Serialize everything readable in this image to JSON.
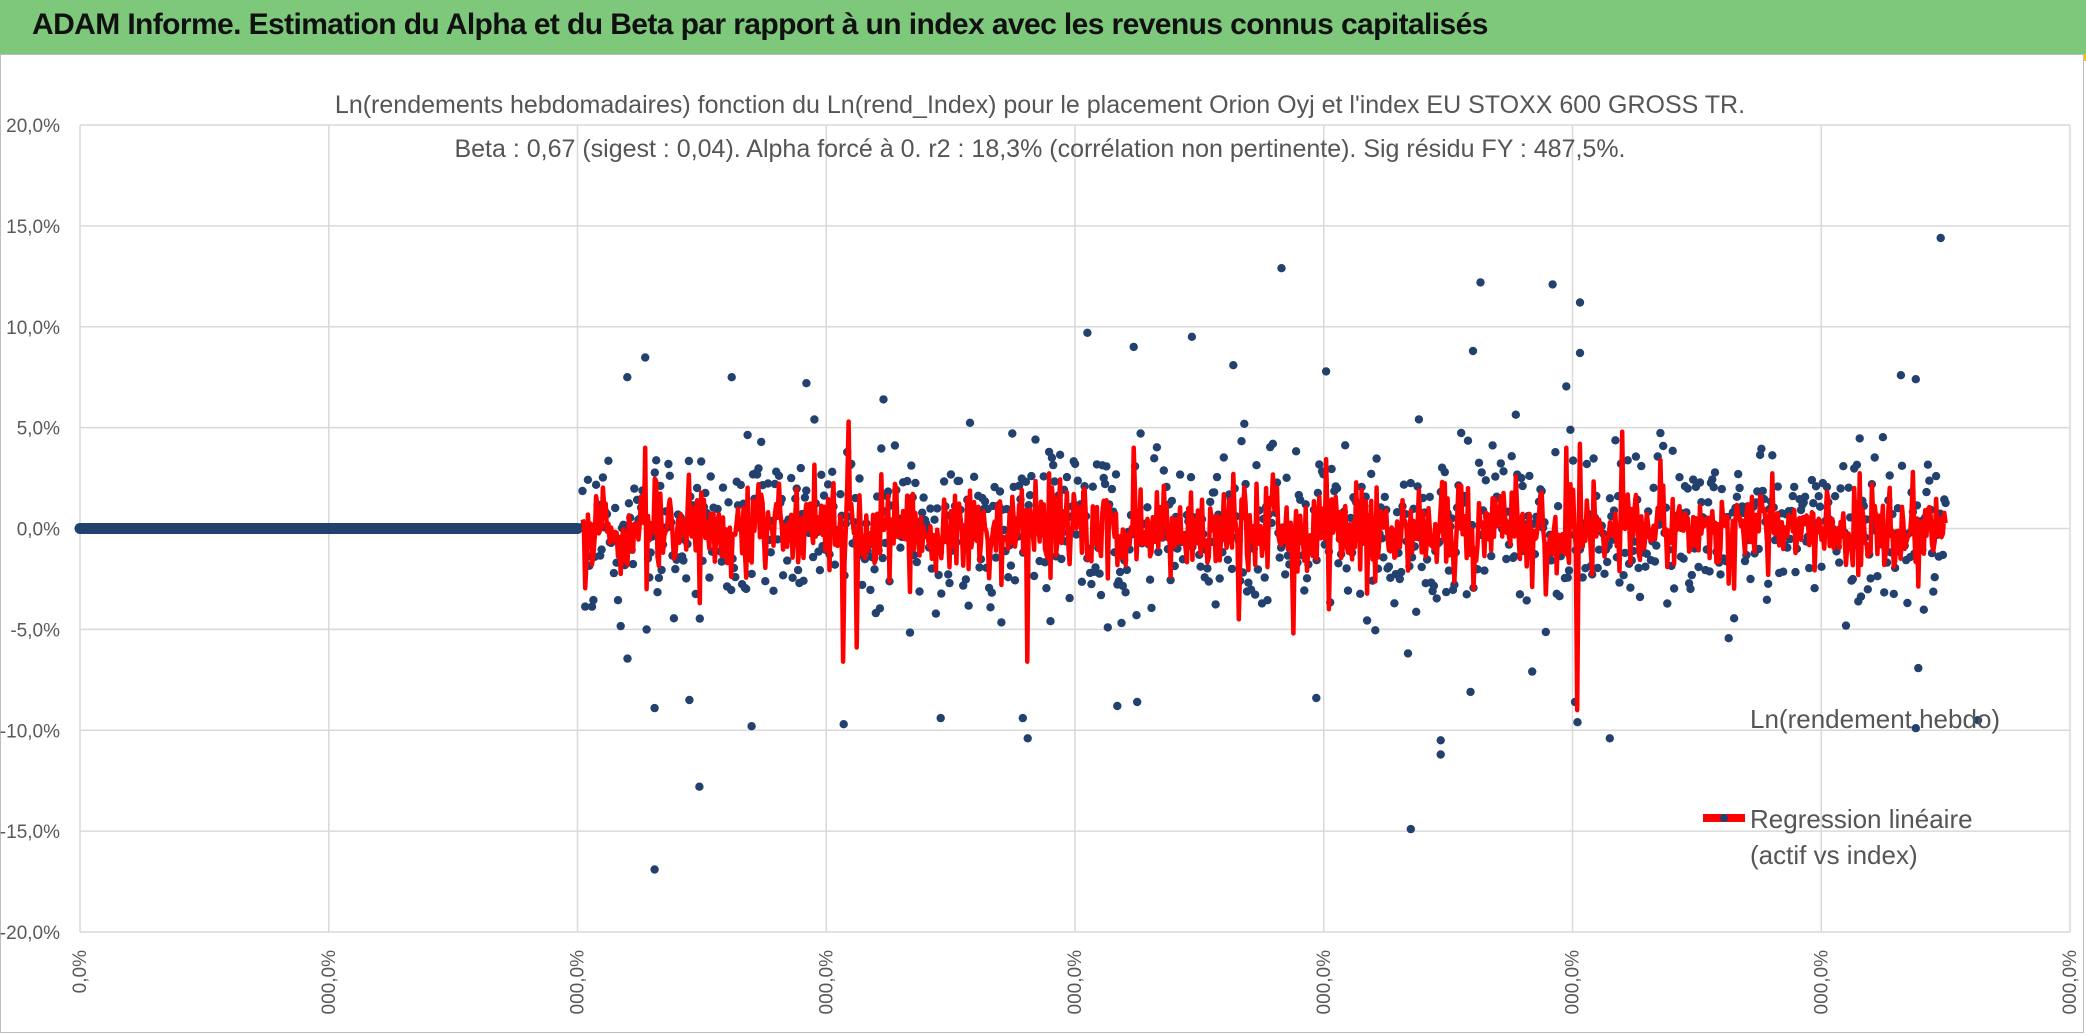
{
  "header": {
    "title": "ADAM Informe. Estimation du Alpha et du Beta par rapport à un index avec les revenus connus capitalisés"
  },
  "colors": {
    "banner": "#7ec87c",
    "series_points": "#23416e",
    "series_regression": "#ff0000",
    "gridline": "#d9d9d9"
  },
  "chart_data": {
    "type": "scatter",
    "title": "Ln(rendements hebdomadaires) fonction du Ln(rend_Index) pour le placement Orion Oyj et l'index EU STOXX 600 GROSS TR.",
    "subtitle": "Beta : 0,67 (sigest : 0,04). Alpha forcé à 0. r2 : 18,3% (corrélation non pertinente). Sig résidu FY : 487,5%.",
    "xlabel": "",
    "ylabel": "",
    "ylim": [
      -20,
      20
    ],
    "y_ticks": [
      20,
      15,
      10,
      5,
      0,
      -5,
      -10,
      -15,
      -20
    ],
    "y_tick_labels": [
      "20,0%",
      "15,0%",
      "10,0%",
      "5,0%",
      "0,0%",
      "-5,0%",
      "-10,0%",
      "-15,0%",
      "-20,0%"
    ],
    "xlim": [
      0,
      8
    ],
    "x_ticks": [
      0,
      1,
      2,
      3,
      4,
      5,
      6,
      7,
      8
    ],
    "x_tick_labels": [
      "0,0%",
      "000,0%",
      "000,0%",
      "000,0%",
      "000,0%",
      "000,0%",
      "000,0%",
      "000,0%",
      "000,0%"
    ],
    "grid": true,
    "legend_position": "bottom-right",
    "series": [
      {
        "name": "Ln(rendement hebdo)",
        "kind": "points",
        "note": "dense cloud of ~1100 weekly points: zero until x≈2.0, then scattered between about -17% and +14.5% up to x≈7.5",
        "zero_segment": {
          "x_start": 0,
          "x_end": 2.0,
          "y": 0
        },
        "cloud_range": {
          "x_start": 2.02,
          "x_end": 7.5
        },
        "outliers": [
          {
            "x": 7.48,
            "y": 14.4
          },
          {
            "x": 4.83,
            "y": 12.9
          },
          {
            "x": 5.63,
            "y": 12.2
          },
          {
            "x": 5.92,
            "y": 12.1
          },
          {
            "x": 6.03,
            "y": 11.2
          },
          {
            "x": 4.05,
            "y": 9.7
          },
          {
            "x": 4.47,
            "y": 9.5
          },
          {
            "x": 5.6,
            "y": 8.8
          },
          {
            "x": 6.03,
            "y": 8.7
          },
          {
            "x": 2.2,
            "y": 7.5
          },
          {
            "x": 2.62,
            "y": 7.5
          },
          {
            "x": 2.92,
            "y": 7.2
          },
          {
            "x": 7.32,
            "y": 7.6
          },
          {
            "x": 7.38,
            "y": 7.4
          },
          {
            "x": 3.23,
            "y": 6.4
          },
          {
            "x": 2.31,
            "y": -16.9
          },
          {
            "x": 5.35,
            "y": -14.9
          },
          {
            "x": 2.49,
            "y": -12.8
          },
          {
            "x": 5.47,
            "y": -11.2
          },
          {
            "x": 5.47,
            "y": -10.5
          },
          {
            "x": 6.15,
            "y": -10.4
          },
          {
            "x": 3.81,
            "y": -10.4
          },
          {
            "x": 7.38,
            "y": -9.9
          },
          {
            "x": 2.7,
            "y": -9.8
          },
          {
            "x": 3.07,
            "y": -9.7
          },
          {
            "x": 6.02,
            "y": -9.6
          },
          {
            "x": 7.63,
            "y": -9.5
          },
          {
            "x": 3.79,
            "y": -9.4
          },
          {
            "x": 3.46,
            "y": -9.4
          },
          {
            "x": 2.31,
            "y": -8.9
          },
          {
            "x": 4.25,
            "y": -8.6
          },
          {
            "x": 4.17,
            "y": -8.8
          },
          {
            "x": 4.97,
            "y": -8.4
          },
          {
            "x": 2.45,
            "y": -8.5
          },
          {
            "x": 6.01,
            "y": -8.6
          },
          {
            "x": 5.59,
            "y": -8.1
          }
        ]
      },
      {
        "name": "Regression linéaire\n(actif vs index)",
        "kind": "line",
        "note": "fitted values oscillating around 0, roughly within -9.6% to +5.3%",
        "spikes": [
          {
            "x": 3.09,
            "y": 5.3
          },
          {
            "x": 3.07,
            "y": -6.6
          },
          {
            "x": 3.12,
            "y": -5.9
          },
          {
            "x": 3.81,
            "y": -6.6
          },
          {
            "x": 4.88,
            "y": -5.2
          },
          {
            "x": 6.03,
            "y": -9.6
          },
          {
            "x": 6.02,
            "y": -9.0
          },
          {
            "x": 6.03,
            "y": 4.2
          },
          {
            "x": 6.2,
            "y": 4.8
          },
          {
            "x": 7.37,
            "y": -5.6
          },
          {
            "x": 7.37,
            "y": 2.8
          },
          {
            "x": 2.49,
            "y": -3.7
          },
          {
            "x": 4.66,
            "y": -4.5
          },
          {
            "x": 5.02,
            "y": -4.0
          }
        ]
      }
    ]
  }
}
